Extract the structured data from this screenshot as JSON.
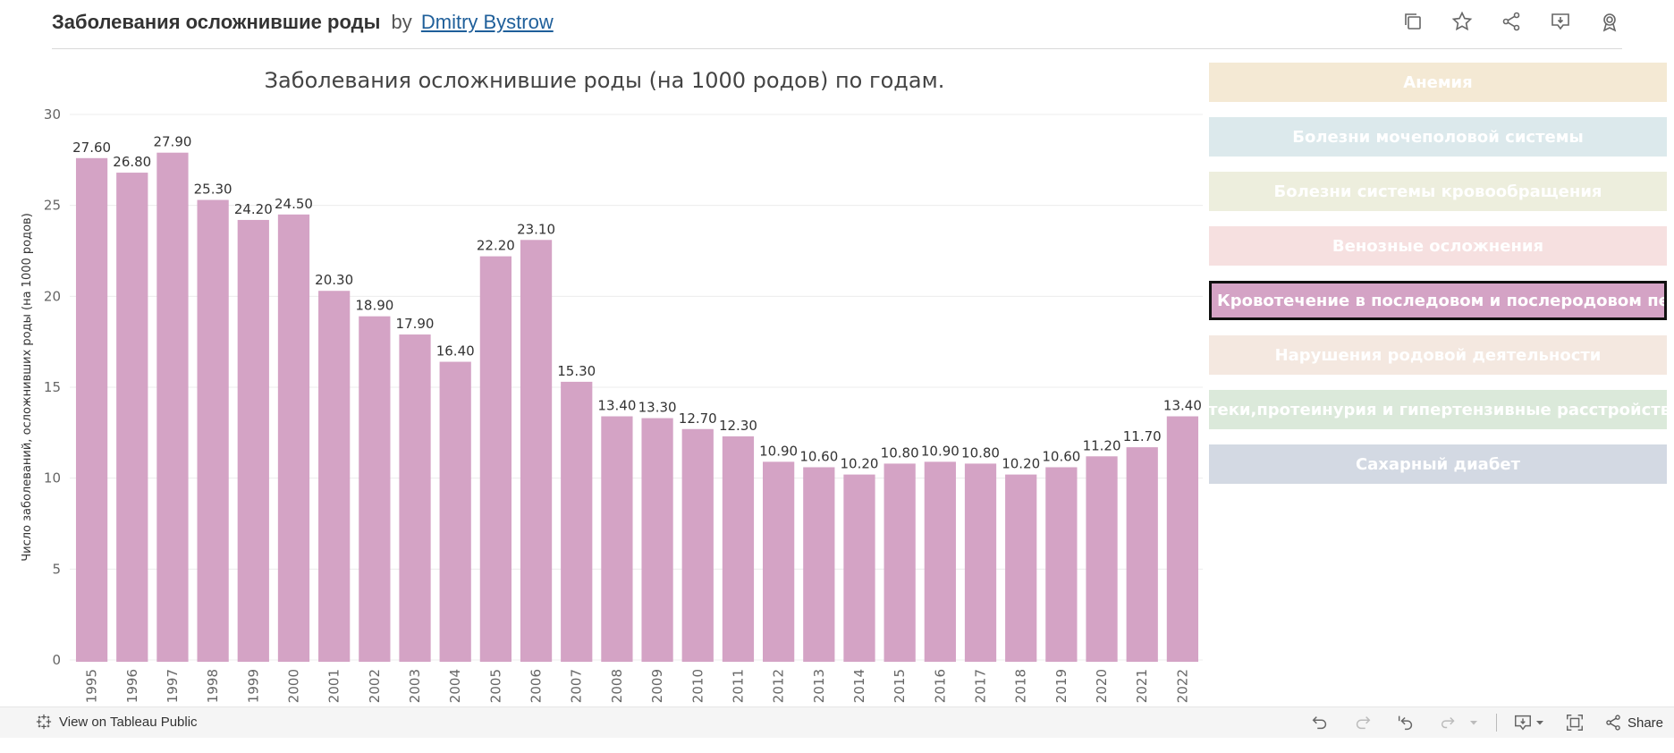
{
  "header": {
    "title": "Заболевания осложнившие роды",
    "by": "by",
    "author": "Dmitry Bystrow",
    "icons": [
      "copy-icon",
      "star-icon",
      "share-icon",
      "download-icon",
      "badge-icon"
    ]
  },
  "chart_data": {
    "type": "bar",
    "title": "Заболевания осложнившие роды (на 1000 родов) по годам.",
    "xlabel": "",
    "ylabel": "Число заболеваний, осложнивших роды (на 1000 родов)",
    "ylim": [
      0,
      30
    ],
    "yticks": [
      "0",
      "5",
      "10",
      "15",
      "20",
      "25",
      "30"
    ],
    "categories": [
      "1995",
      "1996",
      "1997",
      "1998",
      "1999",
      "2000",
      "2001",
      "2002",
      "2003",
      "2004",
      "2005",
      "2006",
      "2007",
      "2008",
      "2009",
      "2010",
      "2011",
      "2012",
      "2013",
      "2014",
      "2015",
      "2016",
      "2017",
      "2018",
      "2019",
      "2020",
      "2021",
      "2022"
    ],
    "values": [
      27.6,
      26.8,
      27.9,
      25.3,
      24.2,
      24.5,
      20.3,
      18.9,
      17.9,
      16.4,
      22.2,
      23.1,
      15.3,
      13.4,
      13.3,
      12.7,
      12.3,
      10.9,
      10.6,
      10.2,
      10.8,
      10.9,
      10.8,
      10.2,
      10.6,
      11.2,
      11.7,
      13.4
    ],
    "labels": [
      "27.60",
      "26.80",
      "27.90",
      "25.30",
      "24.20",
      "24.50",
      "20.30",
      "18.90",
      "17.90",
      "16.40",
      "22.20",
      "23.10",
      "15.30",
      "13.40",
      "13.30",
      "12.70",
      "12.30",
      "10.90",
      "10.60",
      "10.20",
      "10.80",
      "10.90",
      "10.80",
      "10.20",
      "10.60",
      "11.20",
      "11.70",
      "13.40"
    ],
    "color": "#d4a3c5",
    "grid": true
  },
  "legend": {
    "items": [
      {
        "label": "Анемия",
        "color": "#f4e9d4",
        "active": false
      },
      {
        "label": "Болезни мочеполовой системы",
        "color": "#dce9ec",
        "active": false
      },
      {
        "label": "Болезни системы кровообращения",
        "color": "#edeedd",
        "active": false
      },
      {
        "label": "Венозные осложнения",
        "color": "#f6e0e0",
        "active": false
      },
      {
        "label": "Кровотечение в последовом и послеродовом период",
        "color": "#d4a3c5",
        "active": true
      },
      {
        "label": "Нарушения родовой деятельности",
        "color": "#f4e8e0",
        "active": false
      },
      {
        "label": "Отеки,протеинурия и гипертензивные расстройства",
        "color": "#dbe9da",
        "active": false
      },
      {
        "label": "Сахарный диабет",
        "color": "#d3d9e3",
        "active": false
      }
    ]
  },
  "footer": {
    "view_link": "View on Tableau Public",
    "share_label": "Share"
  }
}
